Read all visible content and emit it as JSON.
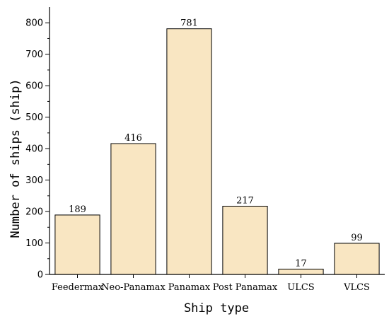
{
  "chart_data": {
    "type": "bar",
    "categories": [
      "Feedermax",
      "Neo-Panamax",
      "Panamax",
      "Post Panamax",
      "ULCS",
      "VLCS"
    ],
    "values": [
      189,
      416,
      781,
      217,
      17,
      99
    ],
    "data_labels": [
      "189",
      "416",
      "781",
      "217",
      "17",
      "99"
    ],
    "xlabel": "Ship type",
    "ylabel": "Number of ships (ship)",
    "ylim": [
      0,
      850
    ],
    "yticks": [
      0,
      100,
      200,
      300,
      400,
      500,
      600,
      700,
      800
    ],
    "ytick_labels": [
      "0",
      "100",
      "200",
      "300",
      "400",
      "500",
      "600",
      "700",
      "800"
    ],
    "grid": false,
    "legend": "none",
    "colors": {
      "bar_fill": "#f9e6c2",
      "bar_stroke": "#000000",
      "axis": "#000000"
    }
  }
}
